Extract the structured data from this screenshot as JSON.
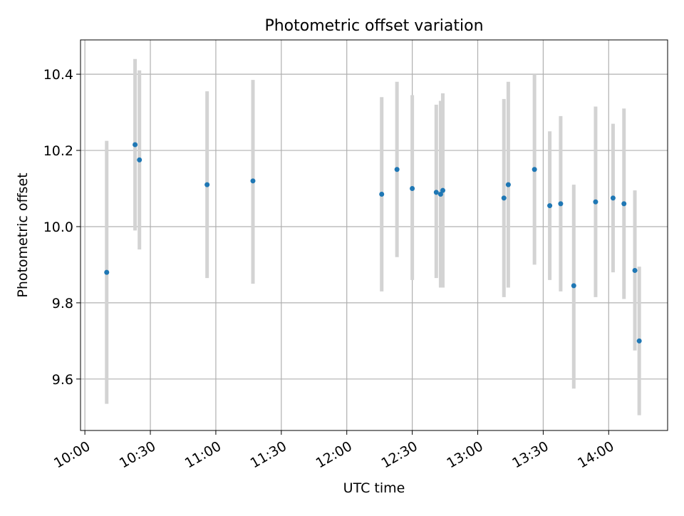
{
  "chart_data": {
    "type": "scatter",
    "title": "Photometric offset variation",
    "xlabel": "UTC time",
    "ylabel": "Photometric offset",
    "x_tick_labels": [
      "10:00",
      "10:30",
      "11:00",
      "11:30",
      "12:00",
      "12:30",
      "13:00",
      "13:30",
      "14:00"
    ],
    "y_tick_labels": [
      "9.6",
      "9.8",
      "10.0",
      "10.2",
      "10.4"
    ],
    "xlim": [
      "09:58",
      "14:27"
    ],
    "ylim": [
      9.465,
      10.49
    ],
    "grid": true,
    "points": [
      {
        "x": "10:10",
        "y": 9.88,
        "err_low": 9.535,
        "err_high": 10.225
      },
      {
        "x": "10:23",
        "y": 10.215,
        "err_low": 9.99,
        "err_high": 10.44
      },
      {
        "x": "10:25",
        "y": 10.175,
        "err_low": 9.94,
        "err_high": 10.41
      },
      {
        "x": "10:56",
        "y": 10.11,
        "err_low": 9.865,
        "err_high": 10.355
      },
      {
        "x": "11:17",
        "y": 10.12,
        "err_low": 9.85,
        "err_high": 10.385
      },
      {
        "x": "12:16",
        "y": 10.085,
        "err_low": 9.83,
        "err_high": 10.34
      },
      {
        "x": "12:23",
        "y": 10.15,
        "err_low": 9.92,
        "err_high": 10.38
      },
      {
        "x": "12:30",
        "y": 10.1,
        "err_low": 9.86,
        "err_high": 10.345
      },
      {
        "x": "12:41",
        "y": 10.09,
        "err_low": 9.865,
        "err_high": 10.32
      },
      {
        "x": "12:43",
        "y": 10.085,
        "err_low": 9.84,
        "err_high": 10.33
      },
      {
        "x": "12:44",
        "y": 10.095,
        "err_low": 9.84,
        "err_high": 10.35
      },
      {
        "x": "13:12",
        "y": 10.075,
        "err_low": 9.815,
        "err_high": 10.335
      },
      {
        "x": "13:14",
        "y": 10.11,
        "err_low": 9.84,
        "err_high": 10.38
      },
      {
        "x": "13:26",
        "y": 10.15,
        "err_low": 9.9,
        "err_high": 10.4
      },
      {
        "x": "13:33",
        "y": 10.055,
        "err_low": 9.86,
        "err_high": 10.25
      },
      {
        "x": "13:38",
        "y": 10.06,
        "err_low": 9.83,
        "err_high": 10.29
      },
      {
        "x": "13:44",
        "y": 9.845,
        "err_low": 9.575,
        "err_high": 10.11
      },
      {
        "x": "13:54",
        "y": 10.065,
        "err_low": 9.815,
        "err_high": 10.315
      },
      {
        "x": "14:02",
        "y": 10.075,
        "err_low": 9.88,
        "err_high": 10.27
      },
      {
        "x": "14:07",
        "y": 10.06,
        "err_low": 9.81,
        "err_high": 10.31
      },
      {
        "x": "14:12",
        "y": 9.885,
        "err_low": 9.675,
        "err_high": 10.095
      },
      {
        "x": "14:14",
        "y": 9.7,
        "err_low": 9.505,
        "err_high": 9.895
      }
    ],
    "colors": {
      "point": "#1f77b4",
      "errorbar": "#d3d3d3",
      "grid": "#b0b0b0",
      "axes": "#000000"
    }
  }
}
